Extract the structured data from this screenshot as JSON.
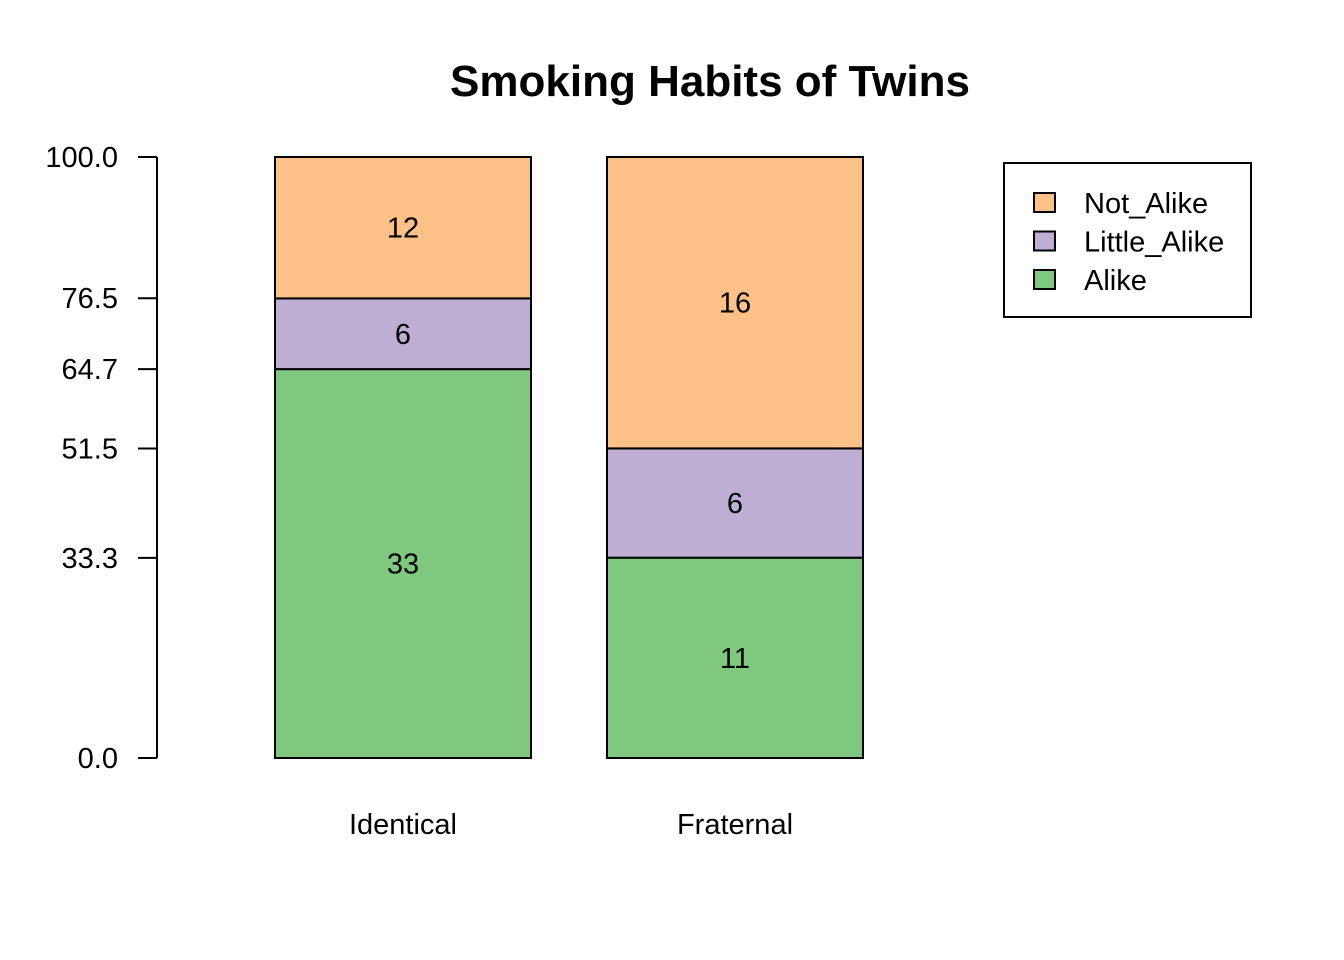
{
  "chart_data": {
    "type": "bar",
    "stacked": true,
    "proportional": true,
    "title": "Smoking Habits of Twins",
    "xlabel": "",
    "ylabel": "",
    "ylim": [
      0,
      100
    ],
    "yticks": [
      "0.0",
      "33.3",
      "51.5",
      "64.7",
      "76.5",
      "100.0"
    ],
    "ytick_values": [
      0,
      33.3,
      51.5,
      64.7,
      76.5,
      100
    ],
    "categories": [
      "Identical",
      "Fraternal"
    ],
    "series": [
      {
        "name": "Alike",
        "values": [
          33,
          11
        ],
        "color": "#7fc97f"
      },
      {
        "name": "Little_Alike",
        "values": [
          6,
          6
        ],
        "color": "#beaed4"
      },
      {
        "name": "Not_Alike",
        "values": [
          12,
          16
        ],
        "color": "#fdc086"
      }
    ],
    "legend": {
      "position": "top-right",
      "entries": [
        "Not_Alike",
        "Little_Alike",
        "Alike"
      ]
    },
    "grid": false
  }
}
